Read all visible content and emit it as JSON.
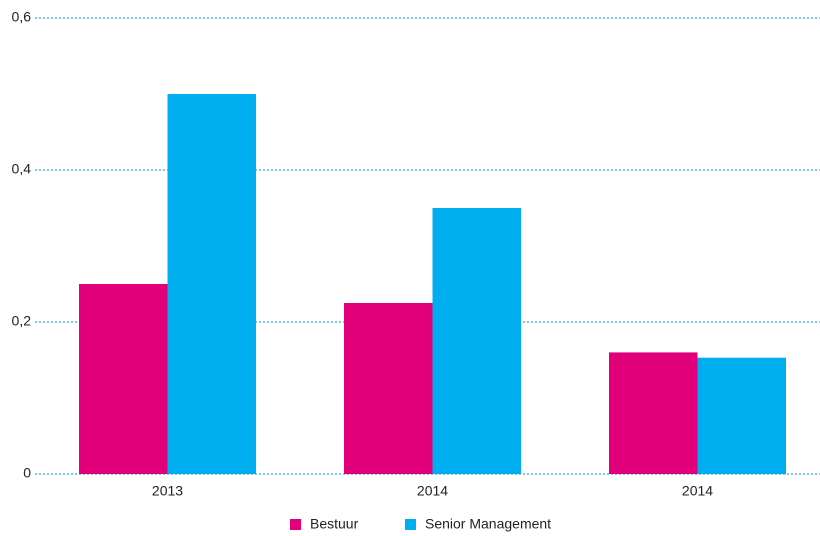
{
  "chart_data": {
    "type": "bar",
    "categories": [
      "2013",
      "2014",
      "2014"
    ],
    "series": [
      {
        "name": "Bestuur",
        "color": "#e2007a",
        "values": [
          0.25,
          0.225,
          0.16
        ]
      },
      {
        "name": "Senior Management",
        "color": "#00aeef",
        "values": [
          0.5,
          0.35,
          0.153
        ]
      }
    ],
    "ylim": [
      0,
      0.6
    ],
    "yticks": [
      0,
      {
        "value": 0.2,
        "label": "0,2"
      },
      {
        "value": 0.4,
        "label": "0,4"
      },
      {
        "value": 0.6,
        "label": "0,6"
      }
    ],
    "grid": true,
    "legend": "bottom"
  }
}
